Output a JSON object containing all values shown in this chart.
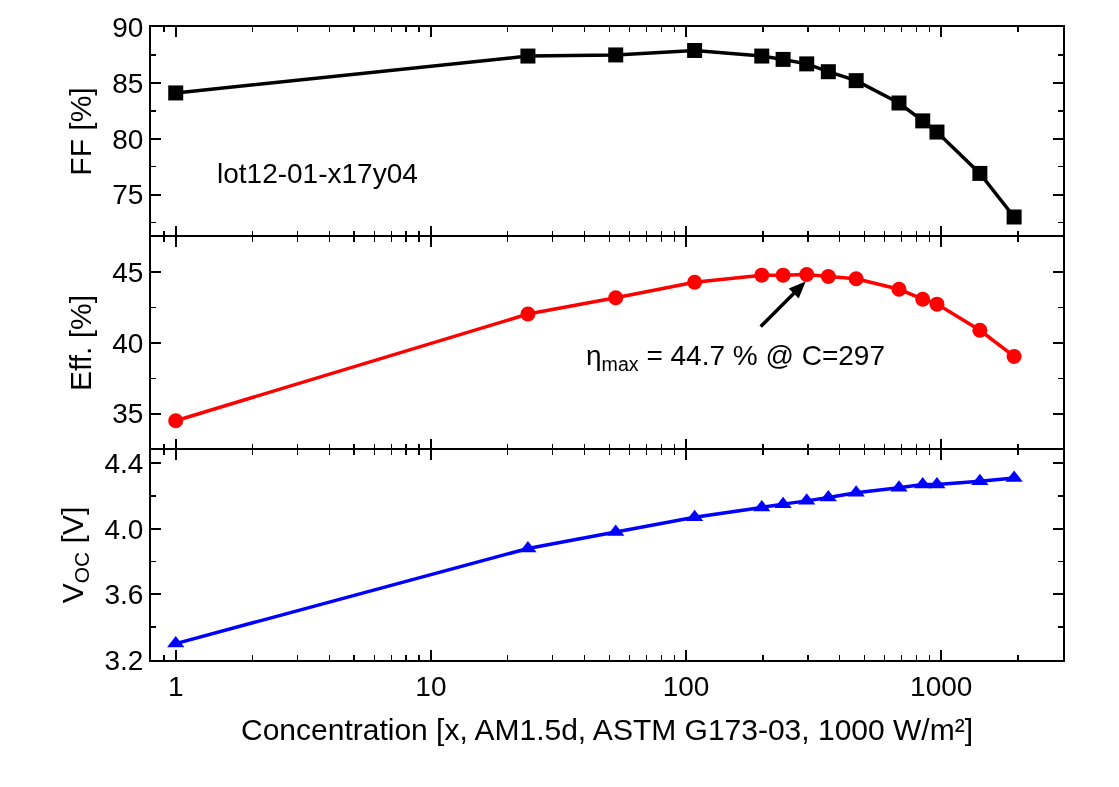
{
  "chart_data": [
    {
      "type": "line",
      "ylabel": "FF [%]",
      "x": [
        1,
        24,
        53,
        108,
        198,
        240,
        297,
        361,
        464,
        683,
        846,
        962,
        1417,
        1930
      ],
      "series": [
        {
          "color": "#000000",
          "values": [
            84.1,
            87.4,
            87.5,
            87.9,
            87.4,
            87.1,
            86.7,
            86.0,
            85.2,
            83.2,
            81.6,
            80.6,
            76.9,
            73.0
          ]
        }
      ],
      "xlim": [
        0.8,
        3000
      ],
      "xticks": [
        1,
        10,
        100,
        1000
      ],
      "ylim": [
        71.3,
        90
      ],
      "yticks": [
        75,
        80,
        85,
        90
      ],
      "log": "x",
      "grid": false,
      "marker": "square",
      "line_style": "solid",
      "tick_labels": "y",
      "annotations": [
        "lot12-01-x17y04"
      ]
    },
    {
      "type": "line",
      "ylabel": "Eff. [%]",
      "x": [
        1,
        24,
        53,
        108,
        198,
        240,
        297,
        361,
        464,
        683,
        846,
        962,
        1417,
        1930
      ],
      "series": [
        {
          "color": "#ff0000",
          "values": [
            34.5,
            42.05,
            43.2,
            44.3,
            44.8,
            44.8,
            44.85,
            44.7,
            44.55,
            43.8,
            43.1,
            42.75,
            40.9,
            39.05
          ]
        }
      ],
      "xlim": [
        0.8,
        3000
      ],
      "xticks": [
        1,
        10,
        100,
        1000
      ],
      "ylim": [
        32.5,
        47.5
      ],
      "yticks": [
        35,
        40,
        45
      ],
      "log": "x",
      "grid": false,
      "marker": "circle",
      "line_style": "solid",
      "tick_labels": "y",
      "annotations": [
        {
          "text": "η$_{max}$ = 44.7 % @ C=297",
          "x": 297,
          "y": 44.85
        }
      ]
    },
    {
      "type": "line",
      "xlabel": "Concentration [x, AM1.5d, ASTM G173-03, 1000 W/m²]",
      "ylabel": "V$_{OC}$ [V]",
      "x": [
        1,
        24,
        53,
        108,
        198,
        240,
        297,
        361,
        464,
        683,
        846,
        962,
        1417,
        1930
      ],
      "series": [
        {
          "color": "#0000ff",
          "values": [
            3.3,
            3.88,
            3.98,
            4.07,
            4.13,
            4.15,
            4.17,
            4.19,
            4.22,
            4.25,
            4.27,
            4.27,
            4.29,
            4.31
          ]
        }
      ],
      "xlim": [
        0.8,
        3000
      ],
      "xticks": [
        1,
        10,
        100,
        1000
      ],
      "ylim": [
        3.2,
        4.48
      ],
      "yticks": [
        {
          "value": 3.2,
          "label": "3.2"
        },
        {
          "value": 3.6,
          "label": "3.6"
        },
        {
          "value": 4.0,
          "label": "4.0"
        },
        {
          "value": 4.4,
          "label": "4.4"
        }
      ],
      "log": "x",
      "grid": false,
      "marker": "triangle",
      "line_style": "solid"
    }
  ]
}
